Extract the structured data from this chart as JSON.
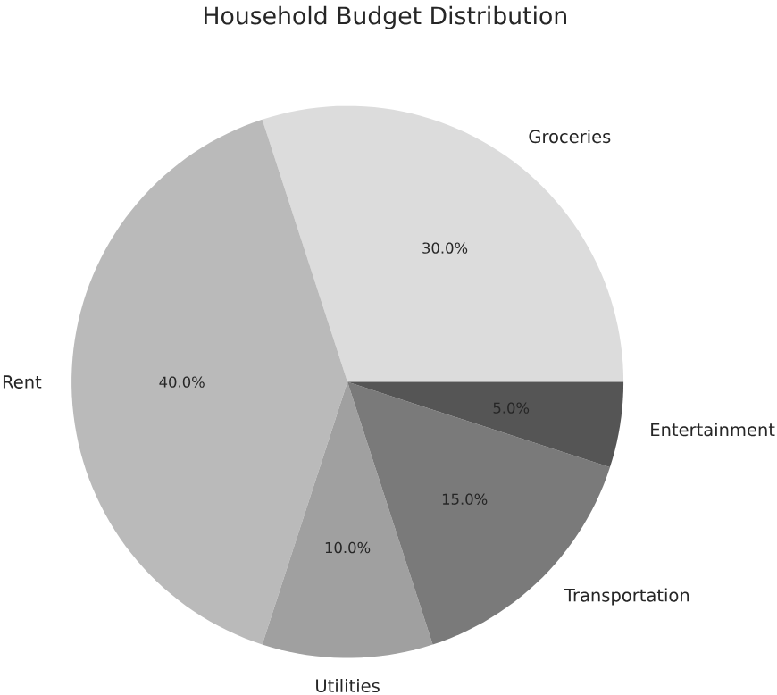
{
  "chart_data": {
    "type": "pie",
    "title": "Household Budget Distribution",
    "categories": [
      "Groceries",
      "Rent",
      "Utilities",
      "Transportation",
      "Entertainment"
    ],
    "values": [
      30,
      40,
      10,
      15,
      5
    ],
    "value_labels": [
      "30.0%",
      "40.0%",
      "10.0%",
      "15.0%",
      "5.0%"
    ],
    "colors": [
      "#dcdcdc",
      "#bababa",
      "#a0a0a0",
      "#7a7a7a",
      "#555555"
    ]
  }
}
